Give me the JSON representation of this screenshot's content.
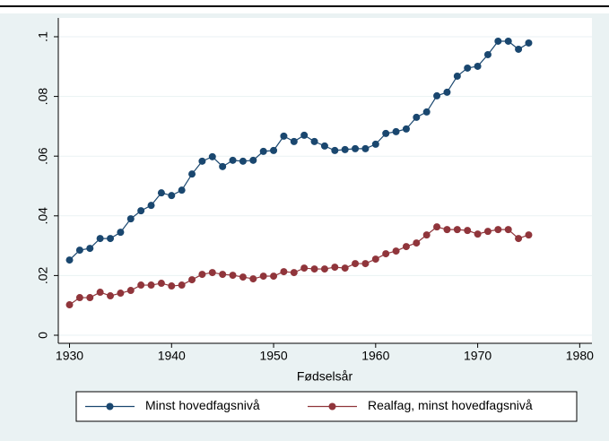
{
  "chart_data": {
    "type": "line",
    "x_label": "Fødselsår",
    "x": [
      1930,
      1931,
      1932,
      1933,
      1934,
      1935,
      1936,
      1937,
      1938,
      1939,
      1940,
      1941,
      1942,
      1943,
      1944,
      1945,
      1946,
      1947,
      1948,
      1949,
      1950,
      1951,
      1952,
      1953,
      1954,
      1955,
      1956,
      1957,
      1958,
      1959,
      1960,
      1961,
      1962,
      1963,
      1964,
      1965,
      1966,
      1967,
      1968,
      1969,
      1970,
      1971,
      1972,
      1973,
      1974,
      1975
    ],
    "series": [
      {
        "name": "Minst hovedfagsnivå",
        "color": "#1a476f",
        "values": [
          0.0252,
          0.0285,
          0.0291,
          0.0324,
          0.0324,
          0.0345,
          0.039,
          0.0417,
          0.0435,
          0.0477,
          0.0468,
          0.0486,
          0.054,
          0.0583,
          0.0598,
          0.0565,
          0.0586,
          0.0583,
          0.0586,
          0.0616,
          0.0619,
          0.0667,
          0.0649,
          0.067,
          0.0649,
          0.0634,
          0.0619,
          0.0622,
          0.0625,
          0.0625,
          0.064,
          0.0676,
          0.0682,
          0.0691,
          0.073,
          0.0748,
          0.0802,
          0.0814,
          0.0868,
          0.0895,
          0.0901,
          0.094,
          0.0985,
          0.0985,
          0.0958,
          0.0979
        ]
      },
      {
        "name": "Realfag, minst hovedfagsnivå",
        "color": "#90353b",
        "values": [
          0.0102,
          0.0126,
          0.0126,
          0.0144,
          0.0132,
          0.0141,
          0.015,
          0.0168,
          0.0168,
          0.0174,
          0.0165,
          0.0168,
          0.0186,
          0.0204,
          0.021,
          0.0204,
          0.0201,
          0.0195,
          0.0189,
          0.0198,
          0.0198,
          0.0213,
          0.021,
          0.0225,
          0.0222,
          0.0222,
          0.0228,
          0.0225,
          0.024,
          0.024,
          0.0255,
          0.0273,
          0.0282,
          0.0297,
          0.0309,
          0.0336,
          0.0363,
          0.0354,
          0.0354,
          0.0351,
          0.0339,
          0.0348,
          0.0354,
          0.0354,
          0.0324,
          0.0336
        ]
      }
    ],
    "xlim": [
      1928.9,
      1981.2
    ],
    "ylim": [
      -0.0027,
      0.1063
    ],
    "xticks": [
      1930,
      1940,
      1950,
      1960,
      1970,
      1980
    ],
    "yticks": [
      0,
      {
        "value": 0.02,
        "label": ".02"
      },
      {
        "value": 0.04,
        "label": ".04"
      },
      {
        "value": 0.06,
        "label": ".06"
      },
      {
        "value": 0.08,
        "label": ".08"
      },
      {
        "value": 0.1,
        "label": ".1"
      }
    ],
    "grid": true
  }
}
